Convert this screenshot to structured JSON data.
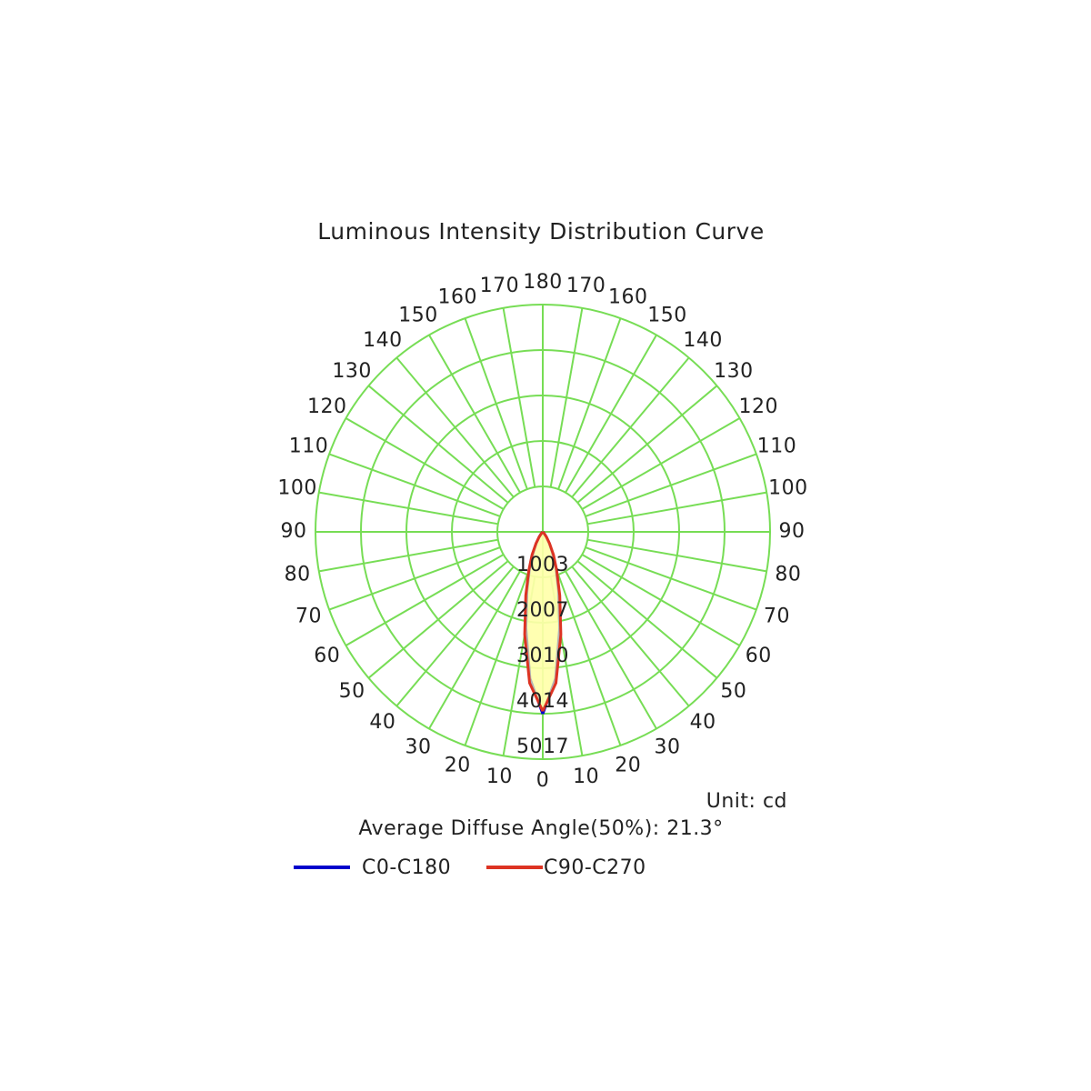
{
  "chart_data": {
    "type": "polar",
    "title": "Luminous Intensity Distribution Curve",
    "unit_label": "Unit: cd",
    "annotation": "Average Diffuse Angle(50%): 21.3°",
    "x": [
      0,
      5,
      10,
      15,
      20,
      25,
      30,
      35,
      40,
      45,
      50,
      60,
      90
    ],
    "series": [
      {
        "name": "C0-C180",
        "color": "#0000cc",
        "values": [
          4020,
          3250,
          2150,
          1350,
          850,
          500,
          280,
          140,
          60,
          20,
          5,
          0,
          0
        ]
      },
      {
        "name": "C90-C270",
        "color": "#dd3322",
        "values": [
          3960,
          3350,
          2300,
          1450,
          900,
          560,
          300,
          150,
          60,
          20,
          5,
          0,
          0
        ]
      }
    ],
    "fill_color": "#ffffaa",
    "grid_color": "#77dd55",
    "rlim": [
      0,
      5017
    ],
    "rticks": [
      1003,
      2007,
      3010,
      4014,
      5017
    ],
    "thetaticks": [
      0,
      10,
      20,
      30,
      40,
      50,
      60,
      70,
      80,
      90,
      100,
      110,
      120,
      130,
      140,
      150,
      160,
      170,
      180
    ]
  }
}
